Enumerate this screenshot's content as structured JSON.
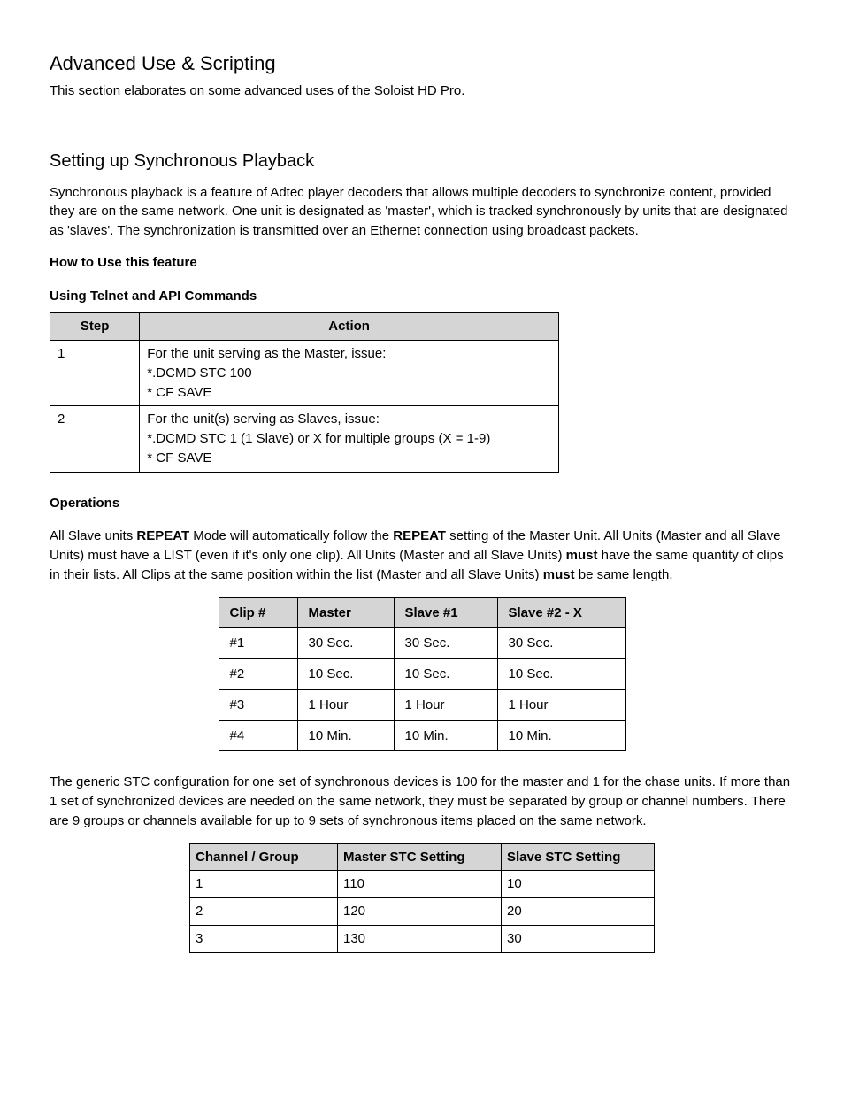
{
  "heading1": "Advanced Use & Scripting",
  "intro1": "This section elaborates on some advanced uses of the Soloist HD Pro.",
  "heading2": "Setting up Synchronous Playback",
  "intro2": "Synchronous playback is a feature of Adtec player decoders that allows multiple decoders to synchronize content, provided they are on the same network. One unit is designated as 'master', which is tracked synchronously by units that are designated as 'slaves'. The synchronization is transmitted over an Ethernet connection using broadcast packets.",
  "howto_label": "How to Use this feature",
  "telnet_label": "Using Telnet and API Commands",
  "steps_table": {
    "headers": [
      "Step",
      "Action"
    ],
    "rows": [
      {
        "step": "1",
        "action_lines": [
          "For the unit serving as the Master, issue:",
          "*.DCMD STC 100",
          "* CF SAVE"
        ]
      },
      {
        "step": "2",
        "action_lines": [
          "For the unit(s) serving as Slaves, issue:",
          "*.DCMD STC 1 (1 Slave) or X for multiple groups (X = 1-9)",
          "* CF SAVE"
        ]
      }
    ]
  },
  "operations_label": "Operations",
  "operations_para": {
    "segments": [
      {
        "t": "All Slave units "
      },
      {
        "t": "REPEAT",
        "b": true
      },
      {
        "t": " Mode will automatically follow the "
      },
      {
        "t": "REPEAT",
        "b": true
      },
      {
        "t": " setting of the Master Unit. All Units (Master and all Slave Units) must have a LIST (even if it's only one clip). All Units (Master and all Slave Units) "
      },
      {
        "t": "must",
        "b": true
      },
      {
        "t": " have the same quantity of clips in their lists. All Clips at the same position within the list (Master and all Slave Units) "
      },
      {
        "t": "must",
        "b": true
      },
      {
        "t": " be same length."
      }
    ]
  },
  "clips_table": {
    "headers": [
      "Clip #",
      "Master",
      "Slave #1",
      "Slave #2 - X"
    ],
    "rows": [
      [
        "#1",
        "30 Sec.",
        "30 Sec.",
        "30 Sec."
      ],
      [
        "#2",
        "10 Sec.",
        "10 Sec.",
        "10 Sec."
      ],
      [
        "#3",
        "1 Hour",
        "1 Hour",
        "1 Hour"
      ],
      [
        "#4",
        "10 Min.",
        "10 Min.",
        "10 Min."
      ]
    ]
  },
  "stc_para": "The generic STC configuration for one set of synchronous devices is 100 for the master and 1 for the chase units. If more than 1 set of synchronized devices are needed on the same network, they must be separated by group or channel numbers. There are 9 groups or  channels available for up to 9 sets of synchronous items placed on the same network.",
  "chan_table": {
    "headers": [
      "Channel / Group",
      "Master STC Setting",
      "Slave STC Setting"
    ],
    "rows": [
      [
        "1",
        "110",
        "10"
      ],
      [
        "2",
        "120",
        "20"
      ],
      [
        "3",
        "130",
        "30"
      ]
    ]
  }
}
